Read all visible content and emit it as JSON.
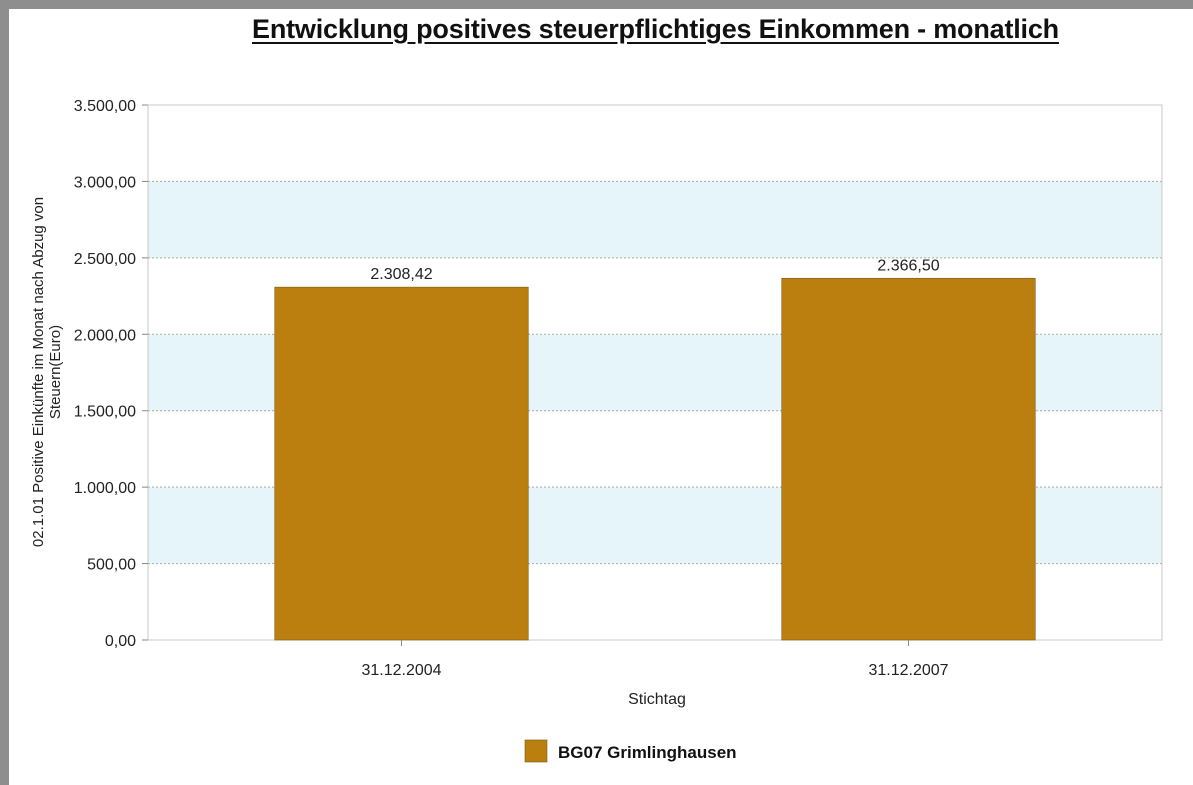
{
  "chart_data": {
    "type": "bar",
    "title": "Entwicklung positives steuerpflichtiges Einkommen - monatlich",
    "xlabel": "Stichtag",
    "ylabel": "02.1.01 Positive Einkünfte im Monat nach Abzug von Steuern(Euro)",
    "ylabel_lines": [
      "02.1.01 Positive Einkünfte im Monat nach Abzug von",
      "Steuern(Euro)"
    ],
    "categories": [
      "31.12.2004",
      "31.12.2007"
    ],
    "series": [
      {
        "name": "BG07 Grimlinghausen",
        "values": [
          2308.42,
          2366.5
        ],
        "color": "#bb7f10"
      }
    ],
    "data_labels": [
      "2.308,42",
      "2.366,50"
    ],
    "ylim": [
      0,
      3500
    ],
    "yticks": [
      0,
      500,
      1000,
      1500,
      2000,
      2500,
      3000,
      3500
    ],
    "ytick_labels": [
      "0,00",
      "500,00",
      "1.000,00",
      "1.500,00",
      "2.000,00",
      "2.500,00",
      "3.000,00",
      "3.500,00"
    ],
    "band_color": "#e5f5fa",
    "grid": true,
    "legend_position": "bottom"
  }
}
